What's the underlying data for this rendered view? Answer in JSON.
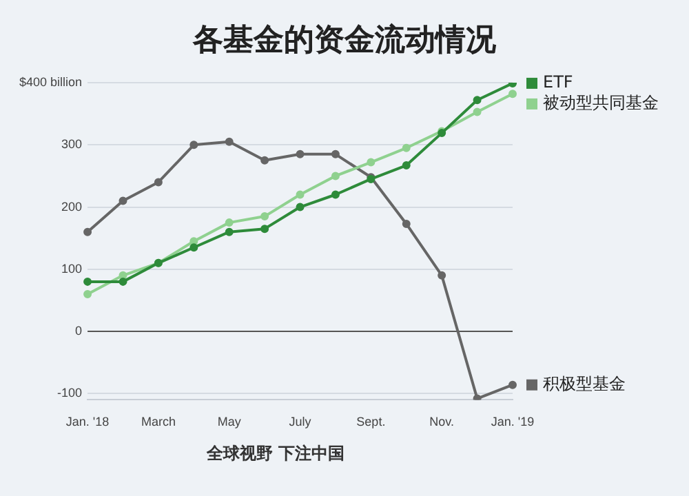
{
  "chart_data": {
    "type": "line",
    "title": "各基金的资金流动情况",
    "categories": [
      "Jan. '18",
      null,
      "March",
      null,
      "May",
      null,
      "July",
      null,
      "Sept.",
      null,
      "Nov.",
      null,
      "Jan. '19"
    ],
    "series": [
      {
        "name": "ETF",
        "color": "#2e8b3a",
        "values": [
          80,
          80,
          110,
          135,
          160,
          165,
          200,
          220,
          245,
          267,
          319,
          372,
          399
        ]
      },
      {
        "name": "被动型共同基金",
        "color": "#8fd18f",
        "values": [
          60,
          90,
          110,
          145,
          175,
          185,
          220,
          250,
          272,
          295,
          322,
          353,
          382
        ]
      },
      {
        "name": "积极型基金",
        "color": "#666666",
        "values": [
          160,
          210,
          240,
          300,
          305,
          275,
          285,
          285,
          248,
          173,
          90,
          -108,
          -86
        ]
      }
    ],
    "ylim": [
      -110,
      400
    ],
    "legend": "right",
    "yticks": [
      {
        "value": 400,
        "label": "$400 billion"
      },
      300,
      200,
      100,
      0,
      -100
    ],
    "grid": "y",
    "marker": "circle",
    "line_style": "solid",
    "annotations": [
      "全球视野 下注中国"
    ]
  }
}
